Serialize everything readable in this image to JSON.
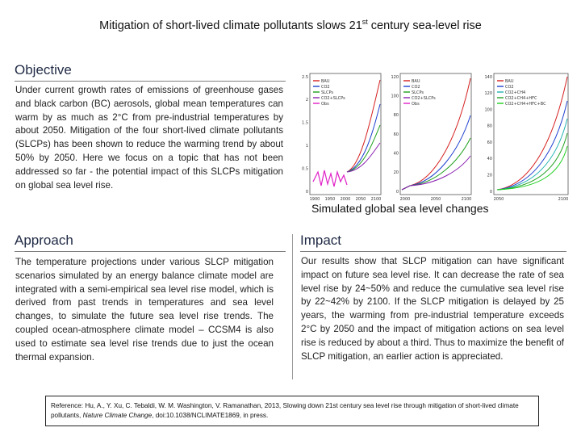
{
  "title": {
    "prefix": "Mitigation of short-lived climate pollutants slows 21",
    "sup": "st",
    "suffix": " century sea-level rise"
  },
  "objective": {
    "heading": "Objective",
    "text": "Under current growth rates of emissions of greenhouse gases and black carbon (BC) aerosols, global mean temperatures can warm by as much as 2°C from pre-industrial temperatures by about 2050. Mitigation of the four short-lived climate pollutants (SLCPs) has been shown to reduce the warming trend by about 50% by 2050. Here we focus on a topic that has not been addressed so far - the potential impact of this SLCPs mitigation on global sea level rise."
  },
  "figure": {
    "caption": "Simulated global sea level changes",
    "panel_a": {
      "legend": [
        "BAU",
        "CO2",
        "SLCPs",
        "CO2+SLCPs",
        "Obs"
      ],
      "colors": [
        "#d62020",
        "#1f3fd0",
        "#1fa01f",
        "#8a1fb0",
        "#e020c8"
      ],
      "yticks": [
        "2.5",
        "2",
        "1.5",
        "1",
        "0.5",
        "0"
      ],
      "xticks": [
        "1900",
        "1950",
        "2000",
        "2050",
        "2100"
      ]
    },
    "panel_b": {
      "legend": [
        "BAU",
        "CO2",
        "SLCPs",
        "CO2+SLCPs",
        "Obs"
      ],
      "colors": [
        "#d62020",
        "#1f3fd0",
        "#1fa01f",
        "#8a1fb0",
        "#e020c8"
      ],
      "yticks": [
        "120",
        "100",
        "80",
        "60",
        "40",
        "20",
        "0"
      ],
      "xticks": [
        "2000",
        "2050",
        "2100"
      ]
    },
    "panel_c": {
      "legend": [
        "BAU",
        "CO2",
        "CO2+CH4",
        "CO2+CH4+HFC",
        "CO2+CH4+HFC+BC"
      ],
      "colors": [
        "#d62020",
        "#1f3fd0",
        "#20b0b0",
        "#22a022",
        "#1fd01f"
      ],
      "yticks": [
        "140",
        "120",
        "100",
        "80",
        "60",
        "40",
        "20",
        "0"
      ],
      "xticks": [
        "2050",
        "2100"
      ]
    }
  },
  "approach": {
    "heading": "Approach",
    "text": "The temperature projections under various SLCP mitigation scenarios simulated by an energy balance climate model are integrated with a semi-empirical sea level rise model, which is derived from past trends in temperatures and sea level changes, to simulate the future sea level rise trends. The coupled ocean-atmosphere climate model – CCSM4 is also used to estimate sea level rise trends due to just the ocean thermal expansion."
  },
  "impact": {
    "heading": "Impact",
    "text": "Our results show that SLCP mitigation can have significant impact on future sea level rise. It can decrease the rate of sea level rise by 24~50% and reduce the cumulative sea level rise by 22~42% by 2100. If the SLCP mitigation is delayed by 25 years, the warming from pre-industrial temperature exceeds 2°C by 2050 and the impact of mitigation actions on sea level rise is reduced by about a third. Thus to maximize the benefit of SLCP mitigation, an earlier action is appreciated."
  },
  "reference": {
    "before": "Reference: Hu, A., Y. Xu, C. Tebaldi, W. M. Washington, V. Ramanathan, 2013, Slowing down 21st century sea level rise through mitigation of short-lived climate pollutants, ",
    "journal": "Nature Climate Change",
    "after": ", doi:10.1038/NCLIMATE1869, in press."
  }
}
